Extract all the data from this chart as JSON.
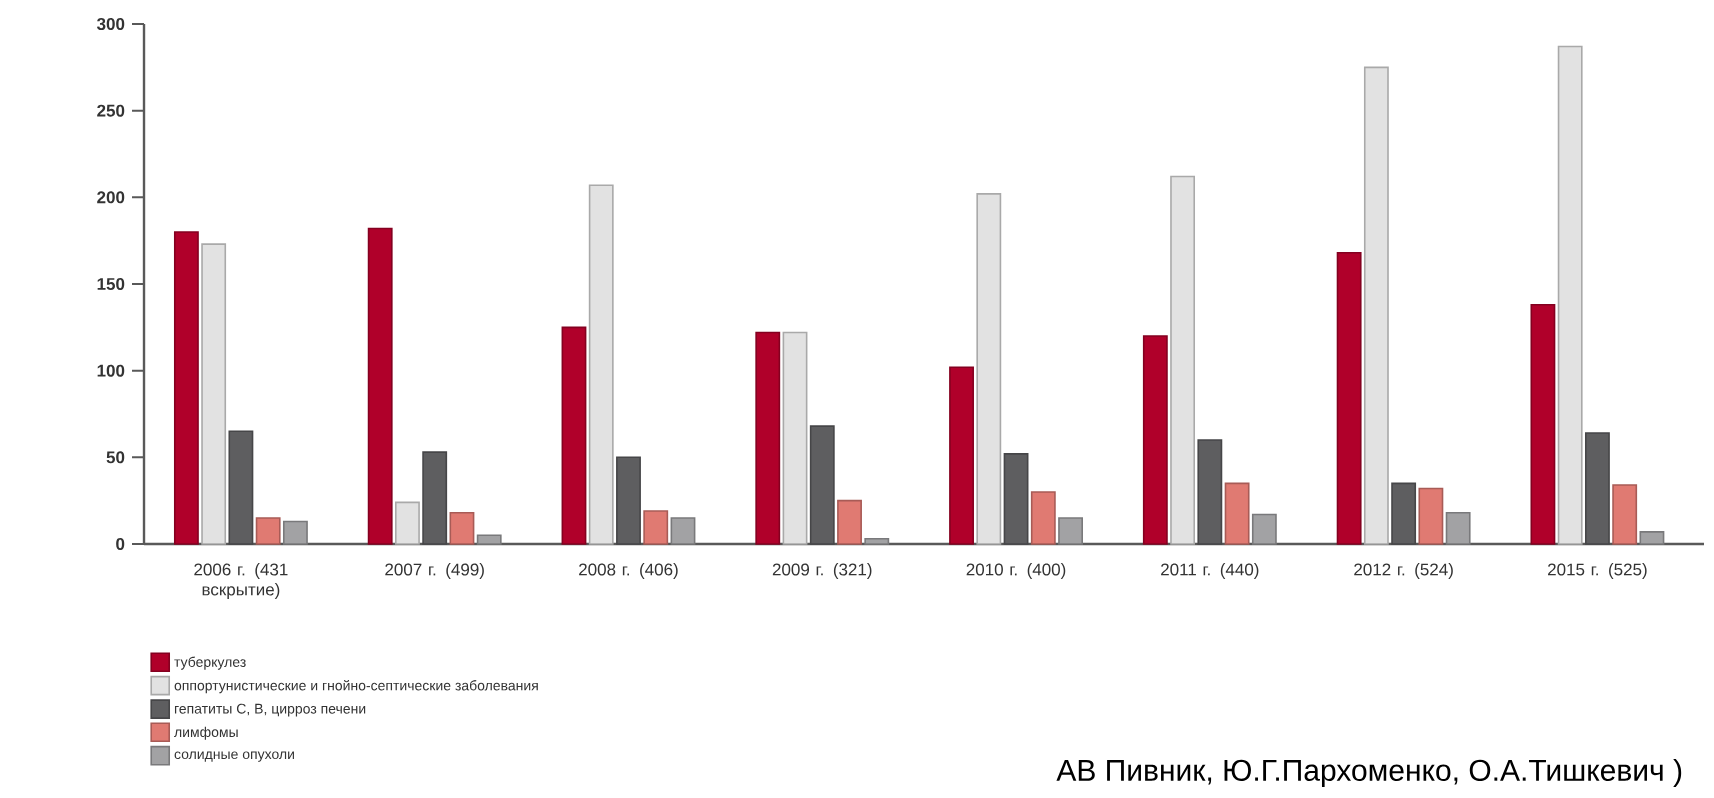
{
  "chart_data": {
    "type": "bar",
    "categories": [
      "2006 г. (431 вскрытие)",
      "2007 г. (499)",
      "2008 г. (406)",
      "2009 г. (321)",
      "2010 г. (400)",
      "2011 г. (440)",
      "2012 г. (524)",
      "2015 г. (525)"
    ],
    "series": [
      {
        "name": "туберкулез",
        "color": "#b0002a",
        "values": [
          180,
          182,
          125,
          122,
          102,
          120,
          168,
          138
        ]
      },
      {
        "name": "оппортунистические и гнойно-септические заболевания",
        "color": "#e2e2e2",
        "values": [
          173,
          24,
          207,
          122,
          202,
          212,
          275,
          287
        ]
      },
      {
        "name": "гепатиты С, В, цирроз печени",
        "color": "#5e5e60",
        "values": [
          65,
          53,
          50,
          68,
          52,
          60,
          35,
          64
        ]
      },
      {
        "name": "лимфомы",
        "color": "#e07a72",
        "values": [
          15,
          18,
          19,
          25,
          30,
          35,
          32,
          34
        ]
      },
      {
        "name": "солидные опухоли",
        "color": "#a2a2a4",
        "values": [
          13,
          5,
          15,
          3,
          15,
          17,
          18,
          7
        ]
      }
    ],
    "ylim": [
      0,
      300
    ],
    "yticks": [
      0,
      50,
      100,
      150,
      200,
      250,
      300
    ],
    "grid": false,
    "legend": "bottom",
    "annotations": [
      "АВ Пивник, Ю.Г.Пархоменко, О.А.Тишкевич )"
    ]
  }
}
